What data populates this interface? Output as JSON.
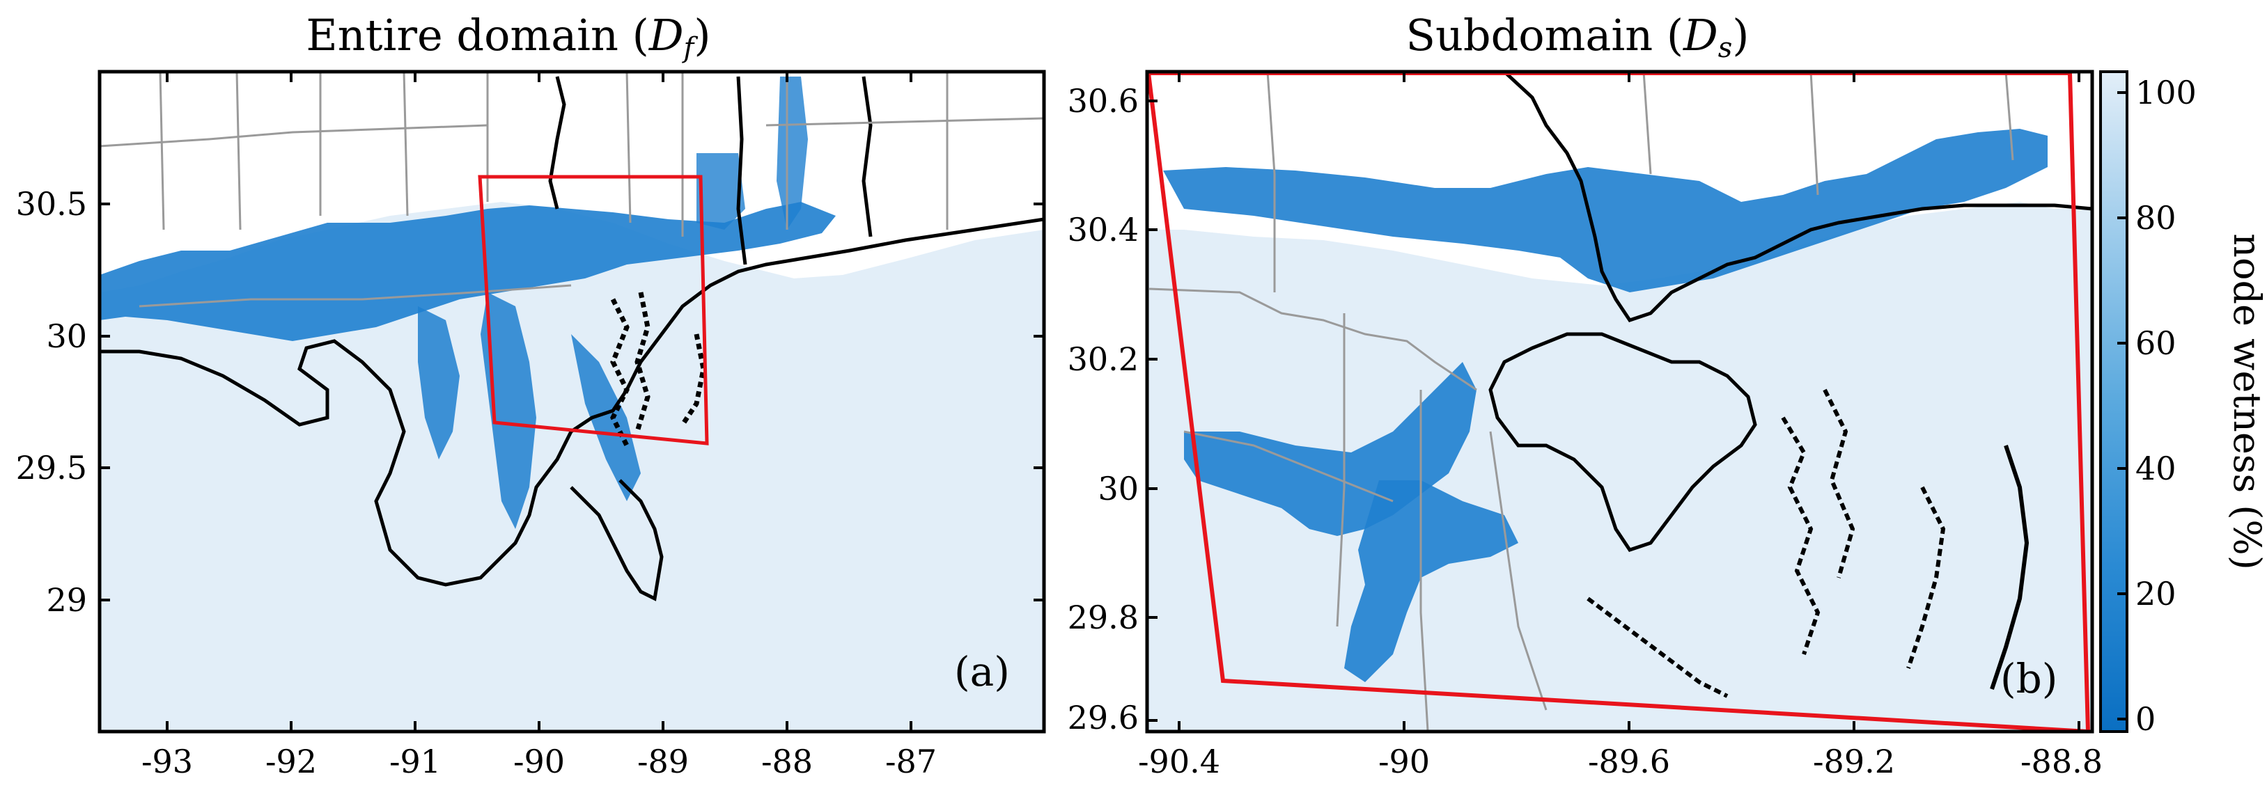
{
  "panels": [
    {
      "id": "a",
      "title_main": "Entire domain (",
      "title_var": "D",
      "title_sub": "f",
      "title_close": ")",
      "panel_label": "(a)",
      "x_ticks": [
        "-93",
        "-92",
        "-91",
        "-90",
        "-89",
        "-88",
        "-87"
      ],
      "y_ticks": [
        "30.5",
        "30",
        "29.5",
        "29"
      ]
    },
    {
      "id": "b",
      "title_main": "Subdomain (",
      "title_var": "D",
      "title_sub": "s",
      "title_close": ")",
      "panel_label": "(b)",
      "x_ticks": [
        "-90.4",
        "-90",
        "-89.6",
        "-89.2",
        "-88.8"
      ],
      "y_ticks": [
        "30.6",
        "30.4",
        "30.2",
        "30",
        "29.8",
        "29.6"
      ]
    }
  ],
  "colorbar": {
    "label": "node wetness (%)",
    "ticks": [
      "100",
      "80",
      "60",
      "40",
      "20",
      "0"
    ],
    "color_low": "#0a6fc2",
    "color_high": "#e2eef8"
  },
  "colors": {
    "water": "#e2eef8",
    "wet_band": "#1f7fcf",
    "subdomain_box": "#e8141c",
    "coastline": "#000000",
    "county_lines": "#9a9a9a"
  }
}
